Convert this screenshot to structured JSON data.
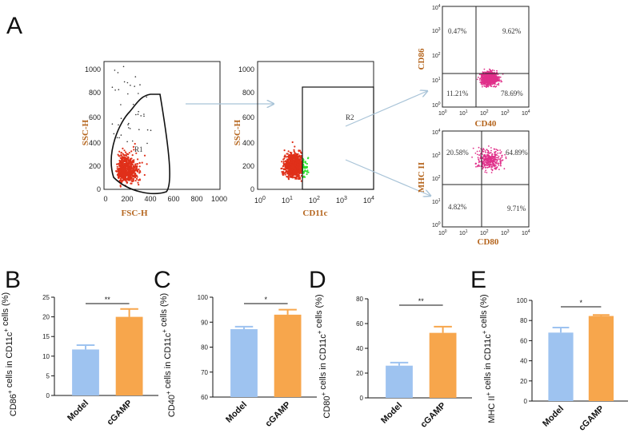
{
  "panels": {
    "A": "A",
    "B": "B",
    "C": "C",
    "D": "D",
    "E": "E"
  },
  "facs": {
    "gate1": {
      "xlabel": "FSC-H",
      "ylabel": "SSC-H",
      "xticks": [
        "0",
        "200",
        "400",
        "600",
        "800",
        "1000"
      ],
      "yticks": [
        "0",
        "200",
        "400",
        "600",
        "800",
        "1000"
      ],
      "gate_label": "R1"
    },
    "gate2": {
      "xlabel": "CD11c",
      "ylabel": "SSC-H",
      "xticks": [
        "10",
        "10",
        "10",
        "10",
        "10"
      ],
      "xexp": [
        "0",
        "1",
        "2",
        "3",
        "4"
      ],
      "yticks": [
        "0",
        "200",
        "400",
        "600",
        "800",
        "1000"
      ],
      "gate_label": "R2"
    },
    "q_cd86": {
      "xlabel": "CD40",
      "ylabel": "CD86",
      "ticks": [
        "10",
        "10",
        "10",
        "10",
        "10"
      ],
      "exp": [
        "0",
        "1",
        "2",
        "3",
        "4"
      ],
      "quadrants": {
        "ul": "0.47%",
        "ur": "9.62%",
        "ll": "11.21%",
        "lr": "78.69%"
      }
    },
    "q_mhc": {
      "xlabel": "CD80",
      "ylabel": "MHC II",
      "ticks": [
        "10",
        "10",
        "10",
        "10",
        "10"
      ],
      "exp": [
        "0",
        "1",
        "2",
        "3",
        "4"
      ],
      "quadrants": {
        "ul": "20.58%",
        "ur": "64.89%",
        "ll": "4.82%",
        "lr": "9.71%"
      }
    }
  },
  "colors": {
    "model": "#9ec3f0",
    "cgamp": "#f7a64c",
    "gated_green": "#2ee02e",
    "ungated_red": "#e0301a",
    "scatter_pink": "#e0308a",
    "label_brown": "#b5651d"
  },
  "chart_data": [
    {
      "panel": "B",
      "type": "bar",
      "categories": [
        "Model",
        "cGAMP"
      ],
      "values": [
        11.7,
        20.0
      ],
      "errors": [
        1.1,
        2.0
      ],
      "ylabel_pre": "CD86",
      "ylabel_sup1": "+",
      "ylabel_mid": " cells in CD11c",
      "ylabel_sup2": "+",
      "ylabel_post": " cells (%)",
      "ylim": [
        0,
        25
      ],
      "yticks": [
        "0",
        "5",
        "10",
        "15",
        "20",
        "25"
      ],
      "yticks_values": [
        0,
        5,
        10,
        15,
        20,
        25
      ],
      "significance": "**"
    },
    {
      "panel": "C",
      "type": "bar",
      "categories": [
        "Model",
        "cGAMP"
      ],
      "values": [
        87.2,
        93.0
      ],
      "errors": [
        1.0,
        2.0
      ],
      "ylabel_pre": "CD40",
      "ylabel_sup1": "+",
      "ylabel_mid": " cells in CD11c",
      "ylabel_sup2": "+",
      "ylabel_post": " cells (%)",
      "ylim": [
        60,
        100
      ],
      "yticks": [
        "60",
        "70",
        "80",
        "90",
        "100"
      ],
      "yticks_values": [
        60,
        70,
        80,
        90,
        100
      ],
      "significance": "*"
    },
    {
      "panel": "D",
      "type": "bar",
      "categories": [
        "Model",
        "cGAMP"
      ],
      "values": [
        26.0,
        52.5
      ],
      "errors": [
        2.5,
        5.0
      ],
      "ylabel_pre": "CD80",
      "ylabel_sup1": "+",
      "ylabel_mid": " cells in CD11c",
      "ylabel_sup2": "+",
      "ylabel_post": " cells (%)",
      "ylim": [
        0,
        80
      ],
      "yticks": [
        "0",
        "20",
        "40",
        "60",
        "80"
      ],
      "yticks_values": [
        0,
        20,
        40,
        60,
        80
      ],
      "significance": "**"
    },
    {
      "panel": "E",
      "type": "bar",
      "categories": [
        "Model",
        "cGAMP"
      ],
      "values": [
        68.0,
        84.5
      ],
      "errors": [
        5.0,
        1.0
      ],
      "ylabel_pre": "MHC II",
      "ylabel_sup1": "+",
      "ylabel_mid": " cells in CD11c",
      "ylabel_sup2": "+",
      "ylabel_post": " cells (%)",
      "ylim": [
        0,
        100
      ],
      "yticks": [
        "0",
        "20",
        "40",
        "60",
        "80",
        "100"
      ],
      "yticks_values": [
        0,
        20,
        40,
        60,
        80,
        100
      ],
      "significance": "*"
    }
  ]
}
